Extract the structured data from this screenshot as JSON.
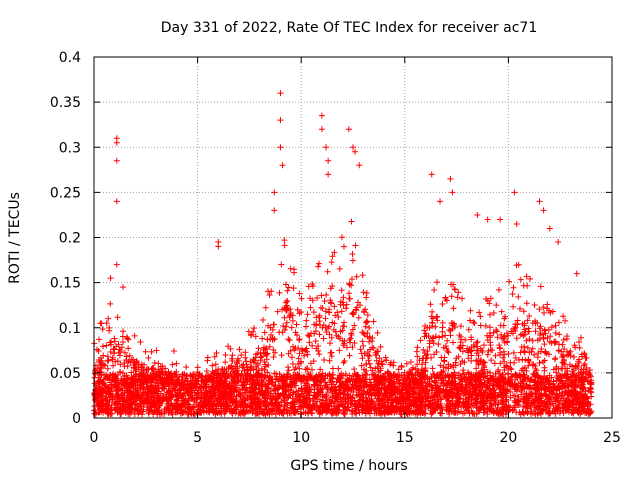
{
  "chart_data": {
    "type": "scatter",
    "title": "Day 331 of 2022, Rate Of TEC Index for receiver ac71",
    "xlabel": "GPS time / hours",
    "ylabel": "ROTI / TECUs",
    "xlim": [
      0,
      25
    ],
    "ylim": [
      0,
      0.4
    ],
    "xticks": [
      "0",
      "5",
      "10",
      "15",
      "20",
      "25"
    ],
    "yticks": [
      "0",
      "0.05",
      "0.1",
      "0.15",
      "0.2",
      "0.25",
      "0.3",
      "0.35",
      "0.4"
    ],
    "grid": true,
    "marker": "+",
    "color": "#ff0000",
    "baseline_envelope": {
      "x": [
        0,
        0.5,
        1,
        1.5,
        2,
        3,
        4,
        5,
        6,
        7,
        8,
        8.5,
        9,
        9.5,
        10,
        10.5,
        11,
        11.5,
        12,
        12.5,
        13,
        13.5,
        14,
        15,
        16,
        16.5,
        17,
        17.5,
        18,
        19,
        20,
        20.5,
        21,
        21.5,
        22,
        23,
        24
      ],
      "y": [
        0.06,
        0.08,
        0.09,
        0.07,
        0.06,
        0.05,
        0.05,
        0.04,
        0.05,
        0.06,
        0.07,
        0.1,
        0.14,
        0.12,
        0.09,
        0.1,
        0.12,
        0.13,
        0.14,
        0.15,
        0.12,
        0.08,
        0.05,
        0.04,
        0.07,
        0.1,
        0.11,
        0.1,
        0.08,
        0.09,
        0.1,
        0.12,
        0.11,
        0.1,
        0.09,
        0.07,
        0.05
      ]
    },
    "notable_points": {
      "x": [
        1.1,
        1.1,
        1.1,
        1.1,
        1.1,
        1.4,
        0.8,
        6.0,
        6.0,
        8.7,
        8.7,
        9.0,
        9.0,
        9.0,
        9.1,
        11.0,
        11.0,
        11.2,
        11.3,
        11.3,
        12.3,
        12.5,
        12.6,
        12.8,
        16.3,
        16.7,
        17.2,
        17.3,
        18.5,
        19.0,
        19.6,
        20.3,
        20.4,
        21.5,
        21.7,
        22.0,
        22.4,
        23.3
      ],
      "y": [
        0.31,
        0.305,
        0.285,
        0.24,
        0.17,
        0.145,
        0.155,
        0.195,
        0.19,
        0.25,
        0.23,
        0.36,
        0.33,
        0.3,
        0.28,
        0.335,
        0.32,
        0.3,
        0.285,
        0.27,
        0.32,
        0.3,
        0.295,
        0.28,
        0.27,
        0.24,
        0.265,
        0.25,
        0.225,
        0.22,
        0.22,
        0.25,
        0.215,
        0.24,
        0.23,
        0.21,
        0.195,
        0.16
      ]
    }
  }
}
